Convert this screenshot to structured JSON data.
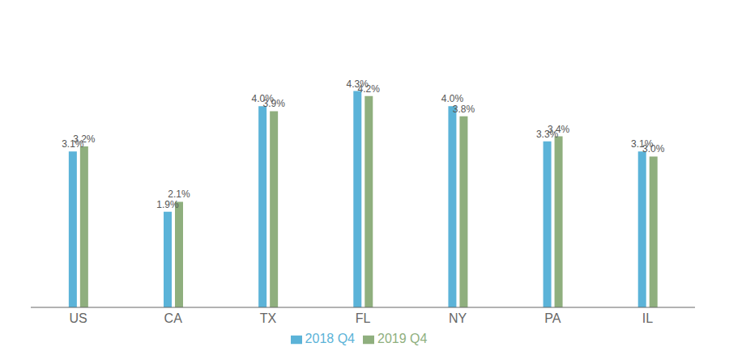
{
  "chart_data": {
    "type": "bar",
    "categories": [
      "US",
      "CA",
      "TX",
      "FL",
      "NY",
      "PA",
      "IL"
    ],
    "series": [
      {
        "name": "2018 Q4",
        "color": "#5BB3D8",
        "values": [
          3.1,
          1.9,
          4.0,
          4.3,
          4.0,
          3.3,
          3.1
        ],
        "value_labels": [
          "3.1%",
          "1.9%",
          "4.0%",
          "4.3%",
          "4.0%",
          "3.3%",
          "3.1%"
        ]
      },
      {
        "name": "2019 Q4",
        "color": "#8FAF7E",
        "values": [
          3.2,
          2.1,
          3.9,
          4.2,
          3.8,
          3.4,
          3.0
        ],
        "value_labels": [
          "3.2%",
          "2.1%",
          "3.9%",
          "4.2%",
          "3.8%",
          "3.4%",
          "3.0%"
        ]
      }
    ],
    "ylim": [
      0,
      5.5
    ],
    "data_labels": true,
    "tick_labels": "x",
    "legend": "bottom",
    "grid": false
  }
}
